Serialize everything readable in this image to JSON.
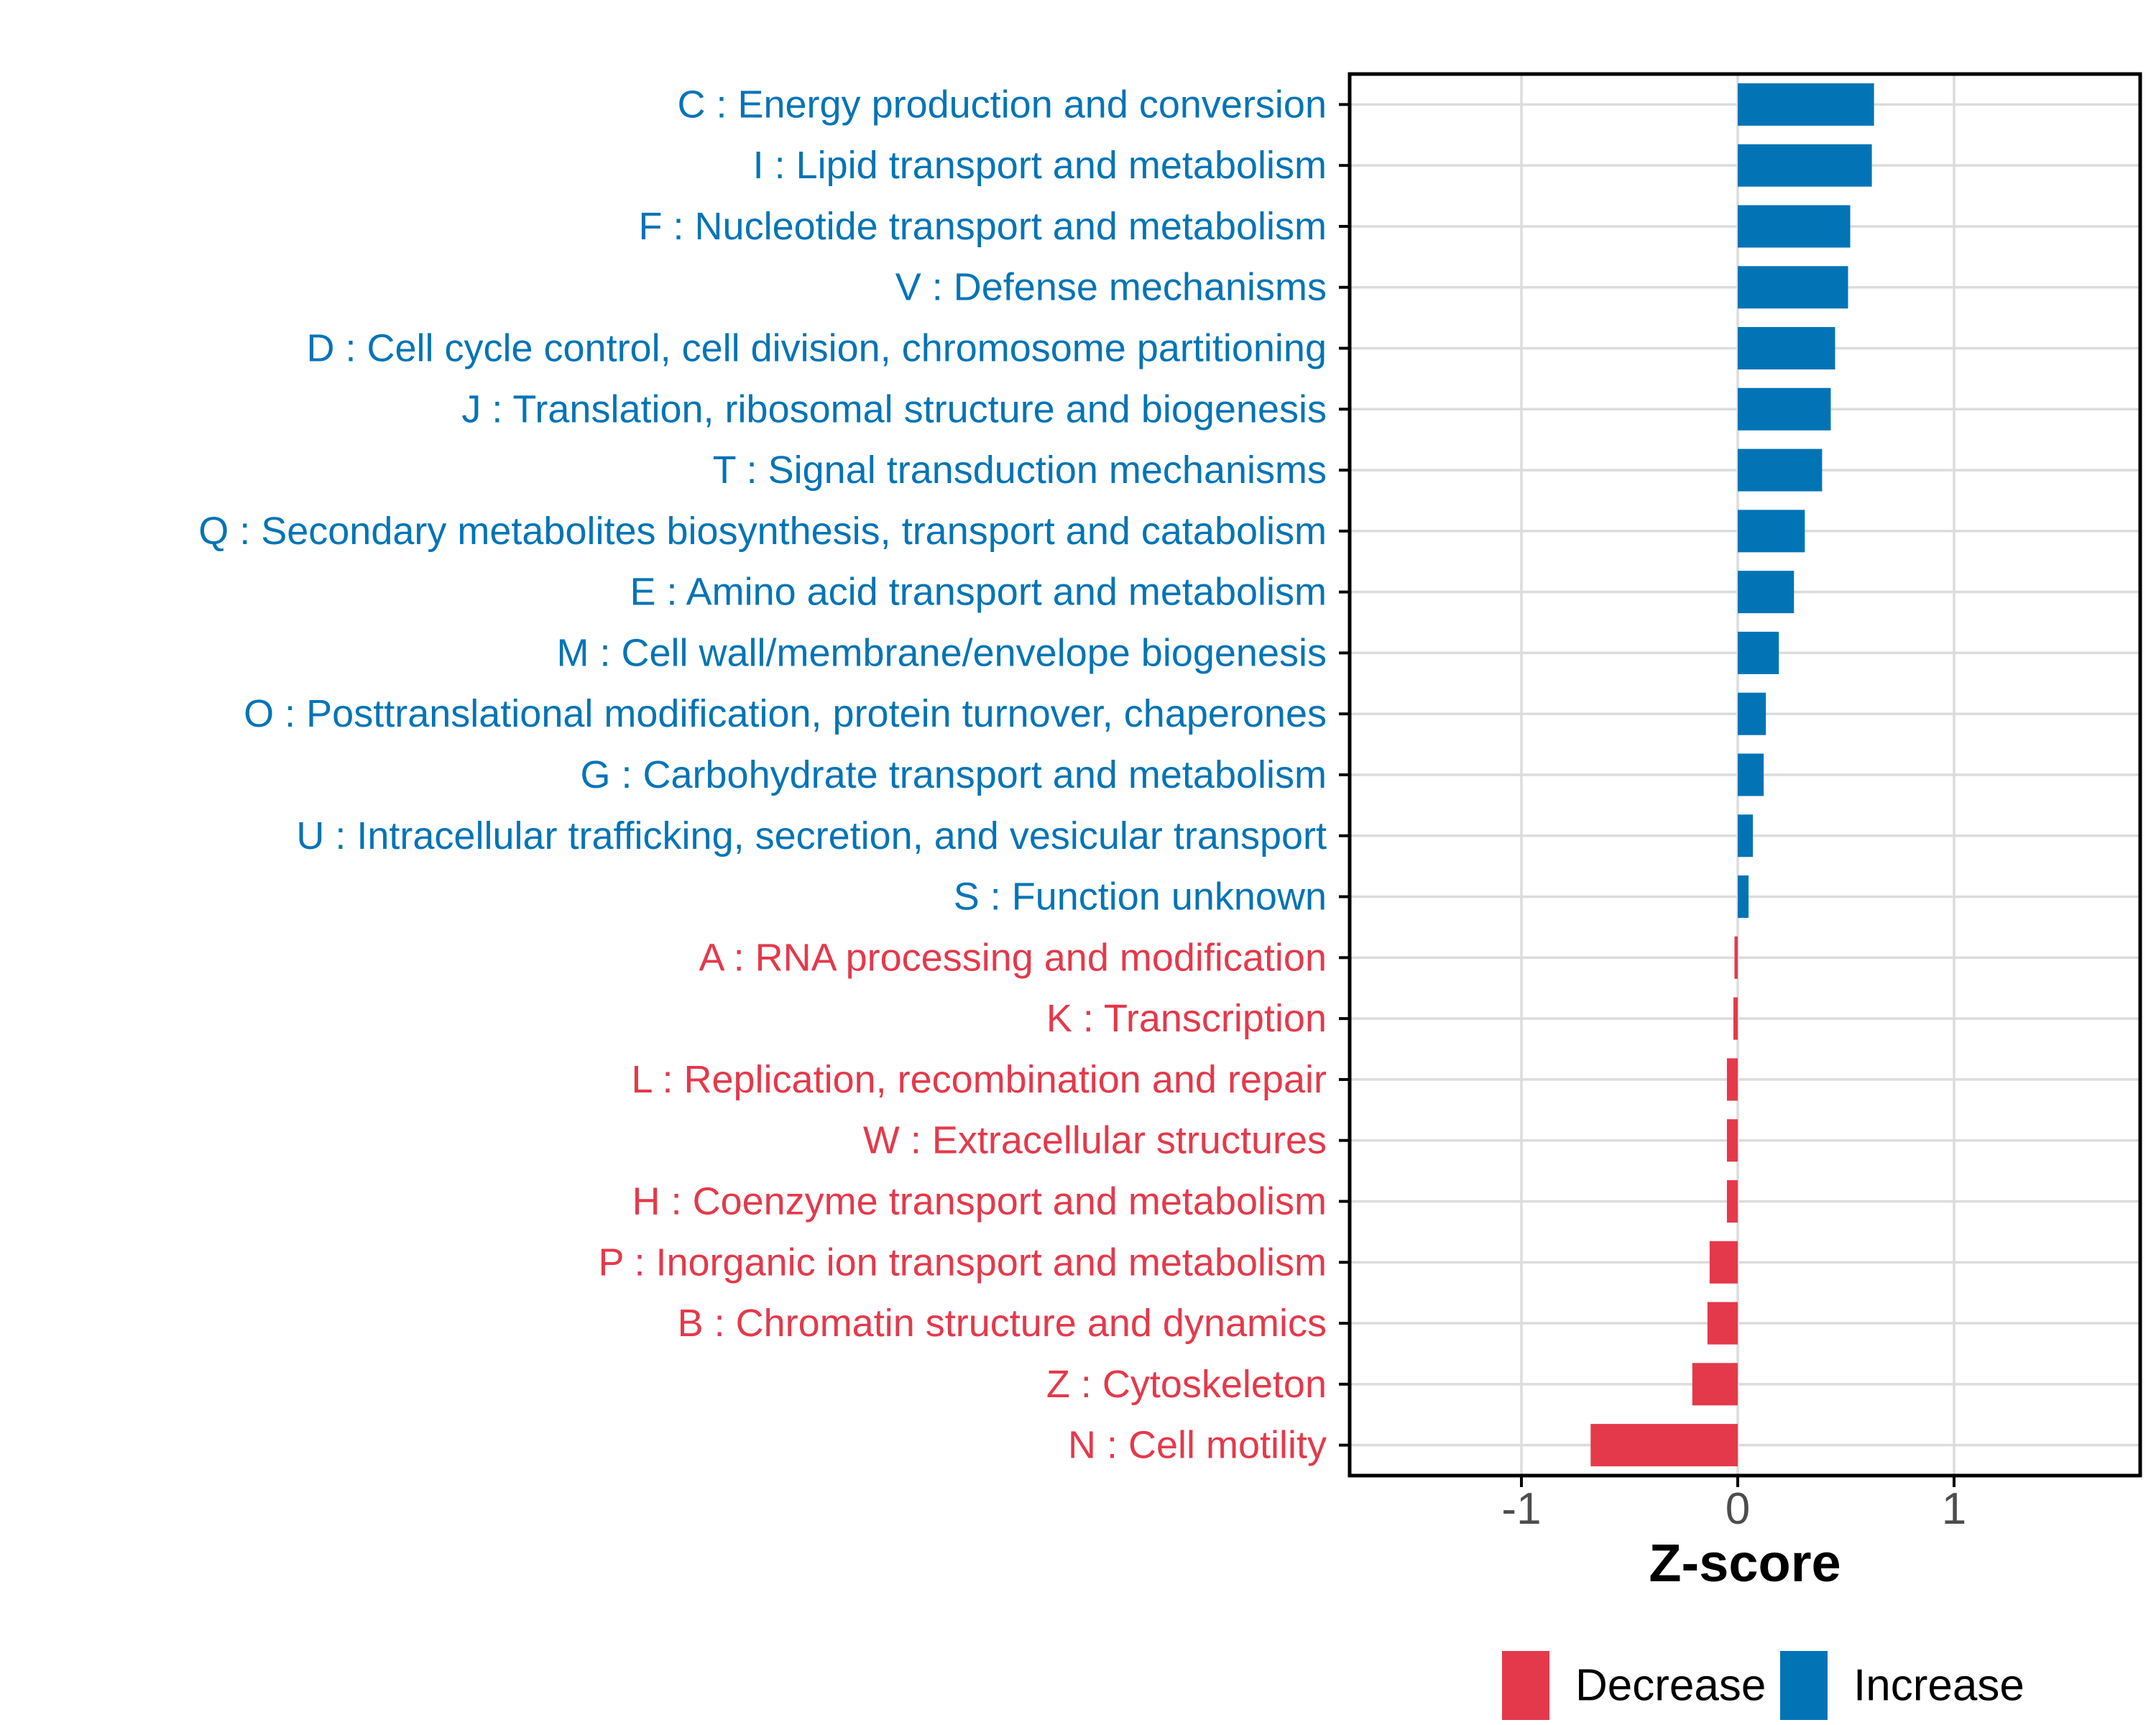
{
  "chart_data": {
    "type": "bar",
    "orientation": "horizontal",
    "title": "",
    "xlabel": "Z-score",
    "ylabel": "",
    "xlim": [
      -1.79,
      1.86
    ],
    "x_ticks": [
      -1,
      0,
      1
    ],
    "x_tick_labels": [
      "-1",
      "0",
      "1"
    ],
    "grid": "major-only",
    "legend_position": "bottom",
    "colors": {
      "increase": "#0274B6",
      "decrease": "#E4394B",
      "gridline": "#DCDCDC",
      "panel_border": "#000000",
      "axis_tick_text": "#4D4D4D",
      "axis_title_text": "#000000"
    },
    "legend": [
      {
        "label": "Decrease",
        "color": "#E4394B"
      },
      {
        "label": "Increase",
        "color": "#0274B6"
      }
    ],
    "bars": [
      {
        "label": "C : Energy production and conversion",
        "value": 0.63,
        "direction": "Increase"
      },
      {
        "label": "I : Lipid transport and metabolism",
        "value": 0.62,
        "direction": "Increase"
      },
      {
        "label": "F : Nucleotide transport and metabolism",
        "value": 0.52,
        "direction": "Increase"
      },
      {
        "label": "V : Defense mechanisms",
        "value": 0.51,
        "direction": "Increase"
      },
      {
        "label": "D : Cell cycle control, cell division, chromosome partitioning",
        "value": 0.45,
        "direction": "Increase"
      },
      {
        "label": "J : Translation, ribosomal structure and biogenesis",
        "value": 0.43,
        "direction": "Increase"
      },
      {
        "label": "T : Signal transduction mechanisms",
        "value": 0.39,
        "direction": "Increase"
      },
      {
        "label": "Q : Secondary metabolites biosynthesis, transport and catabolism",
        "value": 0.31,
        "direction": "Increase"
      },
      {
        "label": "E : Amino acid transport and metabolism",
        "value": 0.26,
        "direction": "Increase"
      },
      {
        "label": "M : Cell wall/membrane/envelope biogenesis",
        "value": 0.19,
        "direction": "Increase"
      },
      {
        "label": "O : Posttranslational modification, protein turnover, chaperones",
        "value": 0.13,
        "direction": "Increase"
      },
      {
        "label": "G : Carbohydrate transport and metabolism",
        "value": 0.12,
        "direction": "Increase"
      },
      {
        "label": "U : Intracellular trafficking, secretion, and vesicular transport",
        "value": 0.07,
        "direction": "Increase"
      },
      {
        "label": "S : Function unknown",
        "value": 0.05,
        "direction": "Increase"
      },
      {
        "label": "A : RNA processing and modification",
        "value": -0.015,
        "direction": "Decrease"
      },
      {
        "label": "K : Transcription",
        "value": -0.02,
        "direction": "Decrease"
      },
      {
        "label": "L : Replication, recombination and repair",
        "value": -0.05,
        "direction": "Decrease"
      },
      {
        "label": "W : Extracellular structures",
        "value": -0.05,
        "direction": "Decrease"
      },
      {
        "label": "H : Coenzyme transport and metabolism",
        "value": -0.05,
        "direction": "Decrease"
      },
      {
        "label": "P : Inorganic ion transport and metabolism",
        "value": -0.13,
        "direction": "Decrease"
      },
      {
        "label": "B : Chromatin structure and dynamics",
        "value": -0.14,
        "direction": "Decrease"
      },
      {
        "label": "Z : Cytoskeleton",
        "value": -0.21,
        "direction": "Decrease"
      },
      {
        "label": "N : Cell motility",
        "value": -0.68,
        "direction": "Decrease"
      }
    ]
  }
}
